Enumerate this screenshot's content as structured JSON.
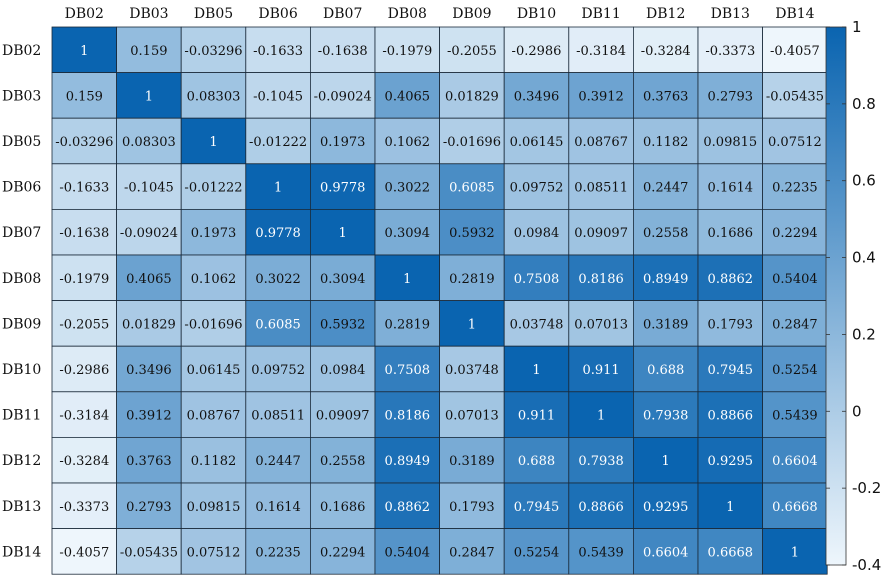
{
  "chart_data": {
    "type": "heatmap",
    "title": "",
    "xlabel": "",
    "ylabel": "",
    "x_labels": [
      "DB02",
      "DB03",
      "DB05",
      "DB06",
      "DB07",
      "DB08",
      "DB09",
      "DB10",
      "DB11",
      "DB12",
      "DB13",
      "DB14"
    ],
    "y_labels": [
      "DB02",
      "DB03",
      "DB05",
      "DB06",
      "DB07",
      "DB08",
      "DB09",
      "DB10",
      "DB11",
      "DB12",
      "DB13",
      "DB14"
    ],
    "values": [
      [
        "1",
        "0.159",
        "-0.03296",
        "-0.1633",
        "-0.1638",
        "-0.1979",
        "-0.2055",
        "-0.2986",
        "-0.3184",
        "-0.3284",
        "-0.3373",
        "-0.4057"
      ],
      [
        "0.159",
        "1",
        "0.08303",
        "-0.1045",
        "-0.09024",
        "0.4065",
        "0.01829",
        "0.3496",
        "0.3912",
        "0.3763",
        "0.2793",
        "-0.05435"
      ],
      [
        "-0.03296",
        "0.08303",
        "1",
        "-0.01222",
        "0.1973",
        "0.1062",
        "-0.01696",
        "0.06145",
        "0.08767",
        "0.1182",
        "0.09815",
        "0.07512"
      ],
      [
        "-0.1633",
        "-0.1045",
        "-0.01222",
        "1",
        "0.9778",
        "0.3022",
        "0.6085",
        "0.09752",
        "0.08511",
        "0.2447",
        "0.1614",
        "0.2235"
      ],
      [
        "-0.1638",
        "-0.09024",
        "0.1973",
        "0.9778",
        "1",
        "0.3094",
        "0.5932",
        "0.0984",
        "0.09097",
        "0.2558",
        "0.1686",
        "0.2294"
      ],
      [
        "-0.1979",
        "0.4065",
        "0.1062",
        "0.3022",
        "0.3094",
        "1",
        "0.2819",
        "0.7508",
        "0.8186",
        "0.8949",
        "0.8862",
        "0.5404"
      ],
      [
        "-0.2055",
        "0.01829",
        "-0.01696",
        "0.6085",
        "0.5932",
        "0.2819",
        "1",
        "0.03748",
        "0.07013",
        "0.3189",
        "0.1793",
        "0.2847"
      ],
      [
        "-0.2986",
        "0.3496",
        "0.06145",
        "0.09752",
        "0.0984",
        "0.7508",
        "0.03748",
        "1",
        "0.911",
        "0.688",
        "0.7945",
        "0.5254"
      ],
      [
        "-0.3184",
        "0.3912",
        "0.08767",
        "0.08511",
        "0.09097",
        "0.8186",
        "0.07013",
        "0.911",
        "1",
        "0.7938",
        "0.8866",
        "0.5439"
      ],
      [
        "-0.3284",
        "0.3763",
        "0.1182",
        "0.2447",
        "0.2558",
        "0.8949",
        "0.3189",
        "0.688",
        "0.7938",
        "1",
        "0.9295",
        "0.6604"
      ],
      [
        "-0.3373",
        "0.2793",
        "0.09815",
        "0.1614",
        "0.1686",
        "0.8862",
        "0.1793",
        "0.7945",
        "0.8866",
        "0.9295",
        "1",
        "0.6668"
      ],
      [
        "-0.4057",
        "-0.05435",
        "0.07512",
        "0.2235",
        "0.2294",
        "0.5404",
        "0.2847",
        "0.5254",
        "0.5439",
        "0.6604",
        "0.6668",
        "1"
      ]
    ],
    "colorbar": {
      "range": [
        -0.4,
        1
      ],
      "tick_labels": [
        "1",
        "0.8",
        "0.6",
        "0.4",
        "0.2",
        "0",
        "-0.2",
        "-0.4"
      ],
      "color_low": "#eef6fc",
      "color_high": "#0a64b0"
    },
    "legend_position": "right"
  }
}
